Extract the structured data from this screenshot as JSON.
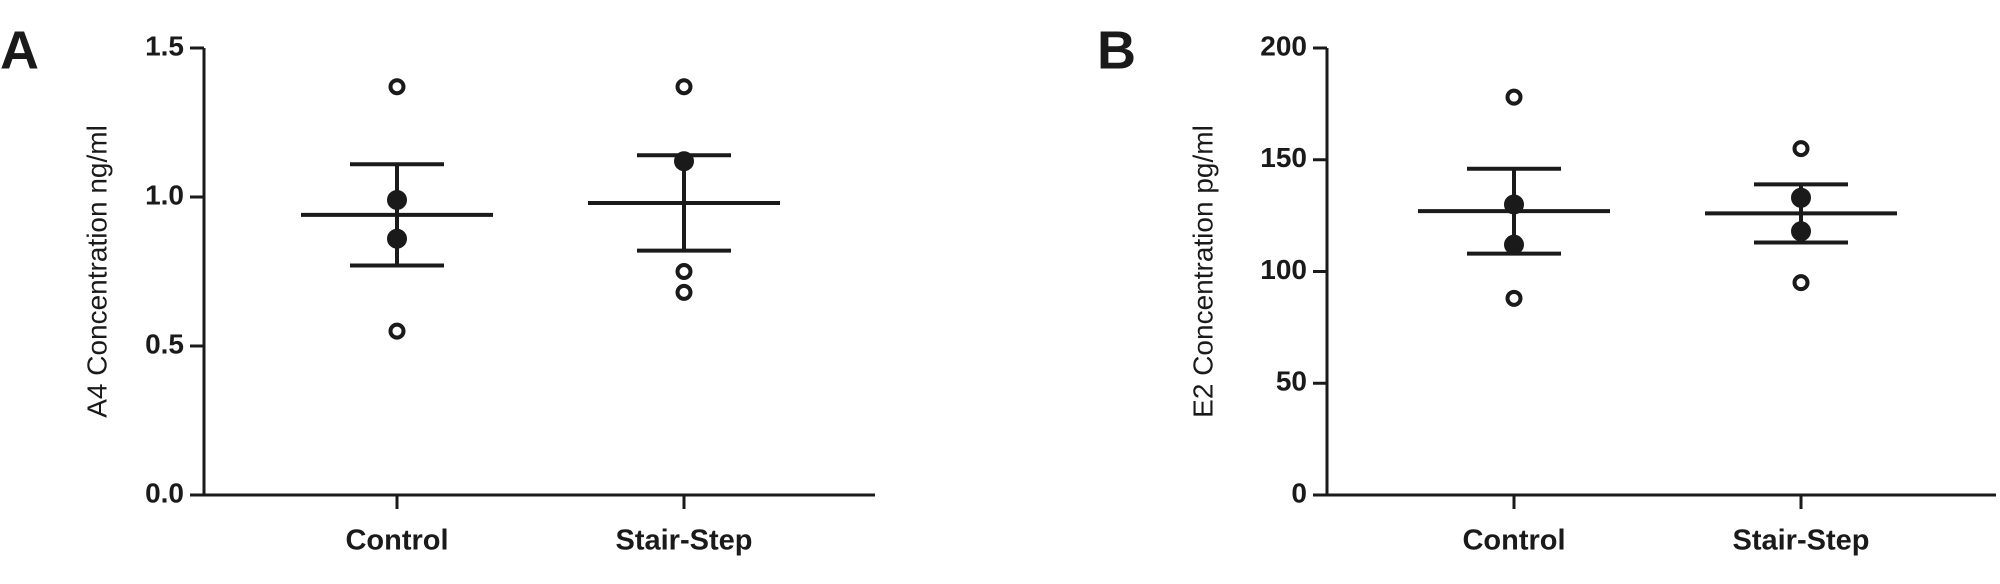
{
  "chart_data": [
    {
      "type": "dot",
      "panel_label": "A",
      "ylabel": "A4 Concentration ng/ml",
      "categories": [
        "Control",
        "Stair-Step"
      ],
      "ylim": [
        0,
        1.5
      ],
      "yticks": [
        {
          "value": 0,
          "label": "0.0"
        },
        0.5,
        {
          "value": 1,
          "label": "1.0"
        },
        1.5
      ],
      "groups": [
        {
          "values": [
            1.37,
            0.99,
            0.86,
            0.55
          ],
          "filled": [
            false,
            true,
            true,
            false
          ],
          "mean": 0.94,
          "error": 0.17
        },
        {
          "values": [
            1.37,
            1.12,
            0.75,
            0.68
          ],
          "filled": [
            false,
            true,
            false,
            false
          ],
          "mean": 0.98,
          "error": 0.16
        }
      ],
      "color": "#1a1a1a"
    },
    {
      "type": "dot",
      "panel_label": "B",
      "ylabel": "E2 Concentration pg/ml",
      "categories": [
        "Control",
        "Stair-Step"
      ],
      "ylim": [
        0,
        200
      ],
      "yticks": [
        0,
        50,
        100,
        150,
        200
      ],
      "groups": [
        {
          "values": [
            178,
            130,
            112,
            88
          ],
          "filled": [
            false,
            true,
            true,
            false
          ],
          "mean": 127,
          "error": 19
        },
        {
          "values": [
            155,
            133,
            118,
            95
          ],
          "filled": [
            false,
            true,
            true,
            false
          ],
          "mean": 126,
          "error": 13
        }
      ],
      "color": "#1a1a1a"
    }
  ]
}
